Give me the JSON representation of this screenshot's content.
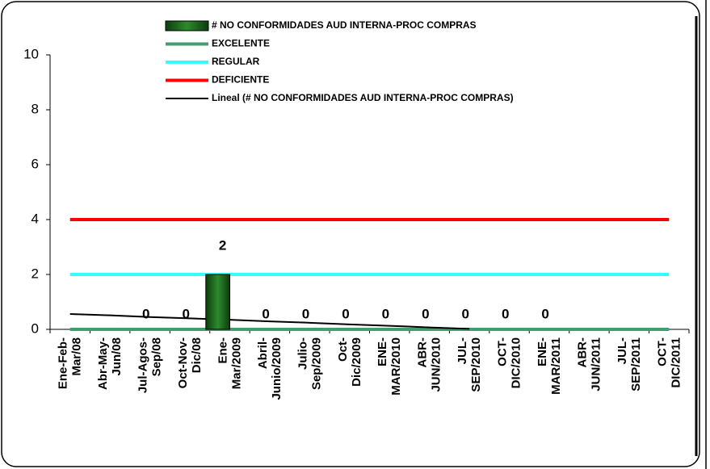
{
  "chart_data": {
    "type": "bar",
    "categories": [
      [
        "Ene-Feb-",
        "Mar/08"
      ],
      [
        "Abr-May-",
        "Jun/08"
      ],
      [
        "Jul-Agos-",
        "Sep/08"
      ],
      [
        "Oct-Nov-",
        "Dic/08"
      ],
      [
        "Ene-",
        "Mar/2009"
      ],
      [
        "Abril-",
        "Junio/2009"
      ],
      [
        "Julio-",
        "Sep/2009"
      ],
      [
        "Oct-",
        "Dic/2009"
      ],
      [
        "ENE-",
        "MAR/2010"
      ],
      [
        "ABR-",
        "JUN/2010"
      ],
      [
        "JUL-",
        "SEP/2010"
      ],
      [
        "OCT-",
        "DIC/2010"
      ],
      [
        "ENE-",
        "MAR/2011"
      ],
      [
        "ABR-",
        "JUN/2011"
      ],
      [
        "JUL-",
        "SEP/2011"
      ],
      [
        "OCT-",
        "DIC/2011"
      ]
    ],
    "series": [
      {
        "name": "# NO CONFORMIDADES AUD INTERNA-PROC COMPRAS",
        "type": "bar",
        "color": "#1b6e1b",
        "values": [
          null,
          null,
          0,
          0,
          2,
          0,
          0,
          0,
          0,
          0,
          0,
          0,
          0,
          null,
          null,
          null
        ]
      },
      {
        "name": "EXCELENTE",
        "type": "line",
        "color": "#3f9f6f",
        "values": [
          0,
          0,
          0,
          0,
          0,
          0,
          0,
          0,
          0,
          0,
          0,
          0,
          0,
          0,
          0,
          0
        ]
      },
      {
        "name": "REGULAR",
        "type": "line",
        "color": "#33ffff",
        "values": [
          2,
          2,
          2,
          2,
          2,
          2,
          2,
          2,
          2,
          2,
          2,
          2,
          2,
          2,
          2,
          2
        ]
      },
      {
        "name": "DEFICIENTE",
        "type": "line",
        "color": "#ff0000",
        "values": [
          4,
          4,
          4,
          4,
          4,
          4,
          4,
          4,
          4,
          4,
          4,
          4,
          4,
          4,
          4,
          4
        ]
      },
      {
        "name": "Lineal (# NO CONFORMIDADES AUD INTERNA-PROC COMPRAS)",
        "type": "line",
        "color": "#000000",
        "values": [
          0.56,
          0.51,
          0.45,
          0.4,
          0.35,
          0.29,
          0.24,
          0.18,
          0.13,
          0.07,
          0.02,
          null,
          null,
          null,
          null,
          null
        ]
      }
    ],
    "ylim": [
      0,
      10
    ],
    "yticks": [
      0,
      2,
      4,
      6,
      8,
      10
    ]
  }
}
